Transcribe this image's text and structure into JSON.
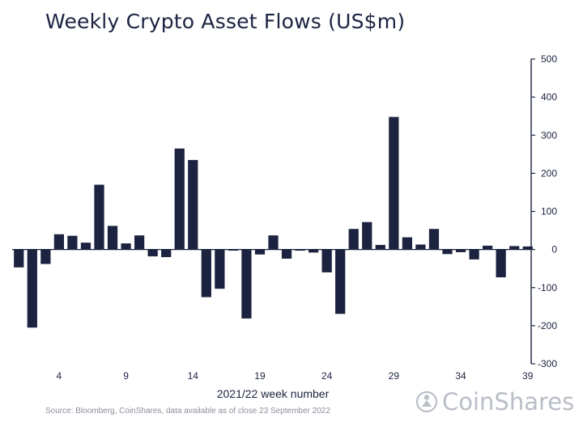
{
  "title": "Weekly Crypto Asset Flows (US$m)",
  "source": "Source: Bloomberg, CoinShares, data available as of close 23 September 2022",
  "brand": {
    "name": "CoinShares"
  },
  "colors": {
    "bar": "#1b2340",
    "text": "#1b2340",
    "muted": "#b9bec7"
  },
  "chart_data": {
    "type": "bar",
    "title": "Weekly Crypto Asset Flows (US$m)",
    "xlabel": "2021/22 week number",
    "ylabel": "",
    "ylim": [
      -300,
      500
    ],
    "y_ticks": [
      500,
      400,
      300,
      200,
      100,
      0,
      -100,
      -200,
      -300
    ],
    "x_ticks": [
      4,
      9,
      14,
      19,
      24,
      29,
      34,
      39
    ],
    "y_axis_position": "right",
    "grid": false,
    "categories": [
      1,
      2,
      3,
      4,
      5,
      6,
      7,
      8,
      9,
      10,
      11,
      12,
      13,
      14,
      15,
      16,
      17,
      18,
      19,
      20,
      21,
      22,
      23,
      24,
      25,
      26,
      27,
      28,
      29,
      30,
      31,
      32,
      33,
      34,
      35,
      36,
      37,
      38,
      39
    ],
    "values": [
      -47,
      -205,
      -38,
      40,
      36,
      18,
      170,
      62,
      16,
      37,
      -18,
      -20,
      265,
      235,
      -125,
      -103,
      -3,
      -181,
      -13,
      37,
      -24,
      -3,
      -8,
      -60,
      -169,
      54,
      72,
      12,
      348,
      32,
      13,
      54,
      -12,
      -7,
      -26,
      10,
      -73,
      9,
      8
    ]
  }
}
